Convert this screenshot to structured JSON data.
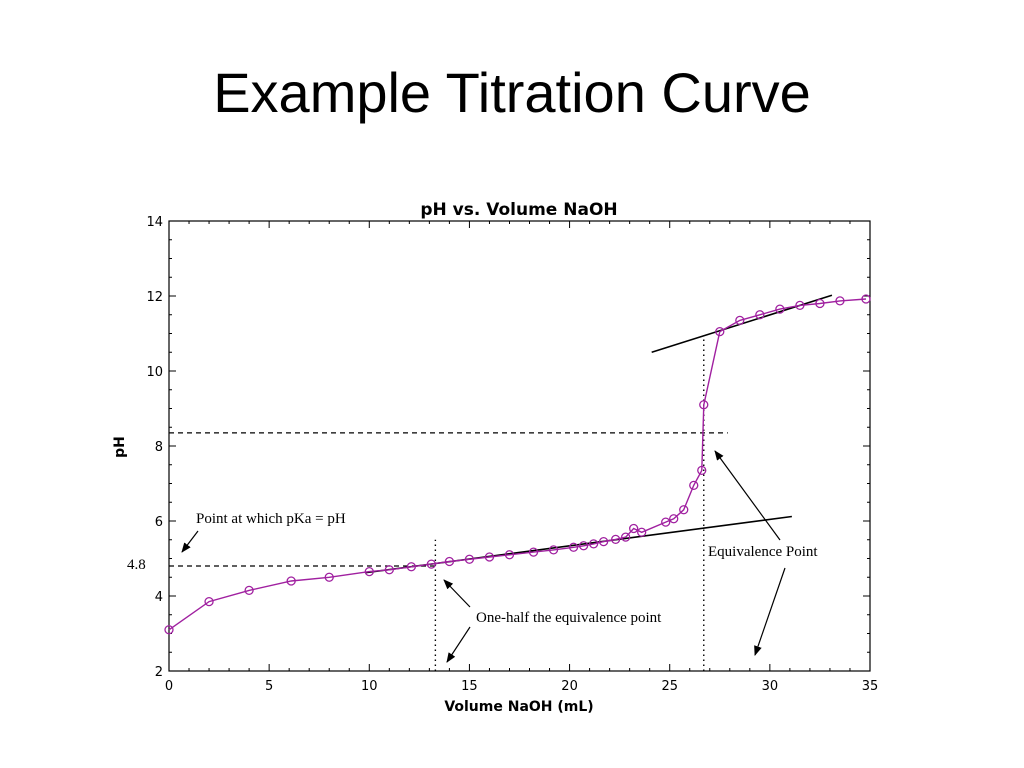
{
  "slide": {
    "title": "Example Titration Curve"
  },
  "annotations": {
    "pka_point": "Point at which pKa = pH",
    "pka_value": "4.8",
    "equivalence_point": "Equivalence Point",
    "half_equivalence": "One-half the equivalence point"
  },
  "colors": {
    "series": "#a020a0",
    "axes": "#000000"
  },
  "chart_data": {
    "type": "line",
    "title": "pH vs. Volume NaOH",
    "xlabel": "Volume NaOH (mL)",
    "ylabel": "pH",
    "xlim": [
      0,
      35
    ],
    "ylim": [
      2,
      14
    ],
    "xticks": [
      0,
      5,
      10,
      15,
      20,
      25,
      30,
      35
    ],
    "yticks": [
      2,
      4,
      6,
      8,
      10,
      12,
      14
    ],
    "grid": false,
    "marker": "open-circle",
    "series": [
      {
        "x": [
          0,
          2,
          4,
          6.1,
          8,
          10,
          11,
          12.1,
          13.1,
          14,
          15,
          16,
          17,
          18.2,
          19.2,
          20.2,
          20.7,
          21.2,
          21.7,
          22.3,
          22.8,
          23.2,
          23.6,
          24.8,
          25.2,
          25.7,
          26.2,
          26.6,
          26.7,
          27.5,
          28.5,
          29.5,
          30.5,
          31.5,
          32.5,
          33.5,
          34.8
        ],
        "y": [
          3.1,
          3.85,
          4.15,
          4.4,
          4.5,
          4.65,
          4.7,
          4.78,
          4.85,
          4.92,
          4.98,
          5.04,
          5.1,
          5.17,
          5.23,
          5.3,
          5.34,
          5.39,
          5.45,
          5.51,
          5.57,
          5.8,
          5.7,
          5.97,
          6.06,
          6.3,
          6.95,
          7.35,
          9.1,
          11.05,
          11.35,
          11.5,
          11.65,
          11.75,
          11.8,
          11.87,
          11.92
        ]
      }
    ],
    "tangent_lines": [
      {
        "x": [
          9.8,
          31.1
        ],
        "y": [
          4.62,
          6.12
        ]
      },
      {
        "x": [
          24.1,
          33.1
        ],
        "y": [
          10.5,
          12.02
        ]
      }
    ],
    "reference_lines": [
      {
        "style": "dashed",
        "orientation": "horizontal",
        "y": 4.8,
        "x": [
          0,
          13.3
        ]
      },
      {
        "style": "dashed",
        "orientation": "horizontal",
        "y": 8.35,
        "x": [
          0,
          27.9
        ]
      },
      {
        "style": "dotted",
        "orientation": "vertical",
        "x": 13.3,
        "y": [
          2,
          5.5
        ]
      },
      {
        "style": "dotted",
        "orientation": "vertical",
        "x": 26.7,
        "y": [
          2,
          10.9
        ]
      }
    ]
  }
}
